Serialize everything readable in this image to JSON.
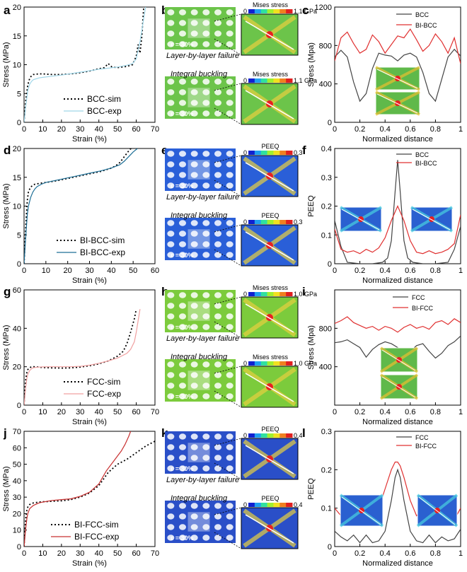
{
  "panel_labels": [
    "a",
    "b",
    "c",
    "d",
    "e",
    "f",
    "g",
    "h",
    "i",
    "j",
    "k",
    "l"
  ],
  "sim_panels": [
    {
      "top_title": "Mises stress",
      "top_max": "1.1 GPa",
      "top_min": "0",
      "top_caption": "Layer-by-layer failure",
      "bottom_title": "Mises stress",
      "bottom_max": "1.1 GPa",
      "bottom_min": "0",
      "bottom_caption": "Integral buckling",
      "strain_label": "ε = 30%",
      "lattice_color": "#6cc44a"
    },
    {
      "top_title": "PEEQ",
      "top_max": "0.3",
      "top_min": "0",
      "top_caption": "Layer-by-layer failure",
      "bottom_title": "PEEQ",
      "bottom_max": "0.3",
      "bottom_min": "0",
      "bottom_caption": "Integral buckling",
      "strain_label": "ε = 30%",
      "lattice_color": "#2a5fd8"
    },
    {
      "top_title": "Mises stress",
      "top_max": "1.0 GPa",
      "top_min": "0",
      "top_caption": "Layer-by-layer failure",
      "bottom_title": "Mises stress",
      "bottom_max": "1.0 GPa",
      "bottom_min": "0",
      "bottom_caption": "Integral buckling",
      "strain_label": "ε = 30%",
      "lattice_color": "#7ccb3c"
    },
    {
      "top_title": "PEEQ",
      "top_max": "0.4",
      "top_min": "0",
      "top_caption": "Layer-by-layer failure",
      "bottom_title": "PEEQ",
      "bottom_max": "0.4",
      "bottom_min": "0",
      "bottom_caption": "Integral buckling",
      "strain_label": "ε = 30%",
      "lattice_color": "#2a4fc8"
    }
  ],
  "chart_data": [
    {
      "id": "a",
      "type": "line",
      "xlabel": "Strain (%)",
      "ylabel": "Stress (MPa)",
      "xlim": [
        0,
        70
      ],
      "ylim": [
        0,
        20
      ],
      "xticks": [
        0,
        10,
        20,
        30,
        40,
        50,
        60,
        70
      ],
      "yticks": [
        0,
        5,
        10,
        15,
        20
      ],
      "legend": "bottom-right",
      "series": [
        {
          "name": "BCC-sim",
          "style": "dotted",
          "color": "#000000",
          "x": [
            0,
            1,
            2,
            3,
            4,
            5,
            8,
            10,
            15,
            20,
            25,
            30,
            35,
            40,
            43,
            45,
            47,
            50,
            55,
            58,
            60,
            61,
            62,
            63,
            64
          ],
          "y": [
            0,
            4,
            6.5,
            7.6,
            8.1,
            8.3,
            8.4,
            8.4,
            8.3,
            8.3,
            8.4,
            8.6,
            8.9,
            9.3,
            9.5,
            10.2,
            9.6,
            9.5,
            9.7,
            10,
            11.5,
            13.5,
            12,
            15,
            20
          ]
        },
        {
          "name": "BCC-exp",
          "style": "solid",
          "color": "#9fd6e8",
          "x": [
            0,
            1,
            2,
            3,
            4,
            5,
            8,
            10,
            15,
            20,
            30,
            40,
            50,
            55,
            58,
            60,
            61,
            62,
            63,
            64,
            65
          ],
          "y": [
            0,
            3,
            5.5,
            6.6,
            7.1,
            7.4,
            7.7,
            7.8,
            8.0,
            8.2,
            8.7,
            9.2,
            9.6,
            9.9,
            10.2,
            11,
            12.5,
            14,
            16,
            18,
            20
          ]
        }
      ]
    },
    {
      "id": "c",
      "type": "line",
      "xlabel": "Normalized distance",
      "ylabel": "Stress (Mpa)",
      "xlim": [
        0,
        1
      ],
      "ylim": [
        0,
        1200
      ],
      "xticks": [
        0,
        0.2,
        0.4,
        0.6,
        0.8,
        1.0
      ],
      "yticks": [
        0,
        400,
        800,
        1200
      ],
      "legend": "top-right",
      "series": [
        {
          "name": "BCC",
          "style": "solid",
          "color": "#444444",
          "x": [
            0,
            0.05,
            0.1,
            0.15,
            0.2,
            0.25,
            0.3,
            0.35,
            0.4,
            0.45,
            0.5,
            0.55,
            0.6,
            0.65,
            0.7,
            0.75,
            0.8,
            0.85,
            0.9,
            0.95,
            1.0
          ],
          "y": [
            680,
            750,
            680,
            420,
            220,
            300,
            560,
            720,
            700,
            690,
            640,
            700,
            720,
            680,
            520,
            300,
            220,
            450,
            680,
            760,
            690
          ]
        },
        {
          "name": "BI-BCC",
          "style": "solid",
          "color": "#e03030",
          "x": [
            0,
            0.05,
            0.1,
            0.15,
            0.2,
            0.25,
            0.3,
            0.35,
            0.4,
            0.45,
            0.5,
            0.55,
            0.6,
            0.65,
            0.7,
            0.75,
            0.8,
            0.85,
            0.9,
            0.95,
            1.0
          ],
          "y": [
            640,
            880,
            940,
            820,
            720,
            760,
            910,
            840,
            720,
            810,
            900,
            880,
            970,
            860,
            740,
            800,
            920,
            840,
            720,
            880,
            610
          ]
        }
      ]
    },
    {
      "id": "d",
      "type": "line",
      "xlabel": "Strain (%)",
      "ylabel": "Stress (MPa)",
      "xlim": [
        0,
        60
      ],
      "ylim": [
        0,
        20
      ],
      "xticks": [
        0,
        10,
        20,
        30,
        40,
        50,
        60
      ],
      "yticks": [
        0,
        5,
        10,
        15,
        20
      ],
      "legend": "bottom-right",
      "series": [
        {
          "name": "BI-BCC-sim",
          "style": "dotted",
          "color": "#000000",
          "x": [
            0,
            0.5,
            1,
            1.5,
            2,
            3,
            4,
            5,
            8,
            10,
            15,
            20,
            25,
            30,
            35,
            40,
            42,
            44,
            46,
            48,
            49
          ],
          "y": [
            0,
            4,
            8,
            11,
            12.5,
            13.3,
            13.6,
            13.8,
            14,
            14.1,
            14.4,
            14.8,
            15.2,
            15.6,
            16,
            16.6,
            17,
            17.6,
            18.6,
            19.6,
            20
          ]
        },
        {
          "name": "BI-BCC-exp",
          "style": "solid",
          "color": "#1e6f96",
          "x": [
            0,
            0.5,
            1,
            1.5,
            2,
            3,
            4,
            5,
            6,
            8,
            10,
            15,
            20,
            25,
            30,
            35,
            40,
            44,
            46,
            48,
            50,
            52
          ],
          "y": [
            0,
            3,
            6,
            8.5,
            10,
            11.5,
            12.4,
            13,
            13.4,
            13.8,
            14.1,
            14.5,
            14.9,
            15.3,
            15.7,
            16.1,
            16.6,
            17.2,
            17.8,
            18.6,
            19.4,
            20
          ]
        }
      ]
    },
    {
      "id": "f",
      "type": "line",
      "xlabel": "Normalized distance",
      "ylabel": "PEEQ",
      "xlim": [
        0,
        1
      ],
      "ylim": [
        0,
        0.4
      ],
      "xticks": [
        0,
        0.2,
        0.4,
        0.6,
        0.8,
        1.0
      ],
      "yticks": [
        0,
        0.1,
        0.2,
        0.3,
        0.4
      ],
      "legend": "top-right",
      "series": [
        {
          "name": "BCC",
          "style": "solid",
          "color": "#444444",
          "x": [
            0,
            0.05,
            0.1,
            0.2,
            0.3,
            0.38,
            0.42,
            0.45,
            0.48,
            0.5,
            0.52,
            0.55,
            0.58,
            0.62,
            0.7,
            0.8,
            0.9,
            0.95,
            1.0
          ],
          "y": [
            0.15,
            0.06,
            0.005,
            0,
            0,
            0.005,
            0.02,
            0.08,
            0.25,
            0.36,
            0.25,
            0.08,
            0.02,
            0.005,
            0,
            0,
            0.005,
            0.05,
            0.13
          ]
        },
        {
          "name": "BI-BCC",
          "style": "solid",
          "color": "#e03030",
          "x": [
            0,
            0.05,
            0.1,
            0.15,
            0.2,
            0.25,
            0.3,
            0.35,
            0.4,
            0.45,
            0.5,
            0.55,
            0.6,
            0.65,
            0.7,
            0.75,
            0.8,
            0.85,
            0.9,
            0.95,
            1.0
          ],
          "y": [
            0.12,
            0.05,
            0.04,
            0.045,
            0.035,
            0.05,
            0.04,
            0.055,
            0.09,
            0.15,
            0.2,
            0.15,
            0.08,
            0.04,
            0.035,
            0.045,
            0.035,
            0.04,
            0.05,
            0.07,
            0.17
          ]
        }
      ]
    },
    {
      "id": "g",
      "type": "line",
      "xlabel": "Strain (%)",
      "ylabel": "Stress (MPa)",
      "xlim": [
        0,
        70
      ],
      "ylim": [
        0,
        60
      ],
      "xticks": [
        0,
        10,
        20,
        30,
        40,
        50,
        60,
        70
      ],
      "yticks": [
        0,
        20,
        40,
        60
      ],
      "legend": "bottom-right",
      "series": [
        {
          "name": "FCC-sim",
          "style": "dotted",
          "color": "#000000",
          "x": [
            0,
            0.5,
            1,
            1.5,
            2,
            3,
            4,
            5,
            8,
            10,
            15,
            20,
            25,
            30,
            35,
            40,
            45,
            50,
            53,
            55,
            57,
            59,
            60
          ],
          "y": [
            0,
            8,
            14,
            17,
            18.5,
            19.5,
            20,
            20,
            19.8,
            19.6,
            19.4,
            19.3,
            19.4,
            19.8,
            20.5,
            21.5,
            23,
            25.5,
            28,
            32,
            38,
            45,
            50
          ]
        },
        {
          "name": "FCC-exp",
          "style": "solid",
          "color": "#f0a0a0",
          "x": [
            0,
            0.5,
            1,
            1.5,
            2,
            3,
            4,
            5,
            8,
            10,
            15,
            20,
            25,
            30,
            35,
            40,
            45,
            50,
            55,
            57,
            59,
            60,
            61,
            62
          ],
          "y": [
            0,
            5,
            10,
            14,
            16,
            18,
            19,
            19.5,
            19.8,
            19.9,
            20,
            20,
            20,
            20.2,
            20.8,
            21.8,
            23,
            24.5,
            27,
            29,
            33,
            38,
            44,
            50
          ]
        }
      ]
    },
    {
      "id": "i",
      "type": "line",
      "xlabel": "Normalized distance",
      "ylabel": "Stress (Mpa)",
      "xlim": [
        0,
        1
      ],
      "ylim": [
        0,
        1200
      ],
      "xticks": [
        0,
        0.2,
        0.4,
        0.6,
        0.8,
        1.0
      ],
      "yticks": [
        400,
        800
      ],
      "legend": "top-right",
      "series": [
        {
          "name": "FCC",
          "style": "solid",
          "color": "#444444",
          "x": [
            0,
            0.05,
            0.1,
            0.15,
            0.2,
            0.25,
            0.3,
            0.35,
            0.4,
            0.45,
            0.5,
            0.55,
            0.6,
            0.65,
            0.7,
            0.75,
            0.8,
            0.85,
            0.9,
            0.95,
            1.0
          ],
          "y": [
            650,
            660,
            680,
            640,
            600,
            500,
            580,
            630,
            660,
            640,
            600,
            540,
            560,
            620,
            640,
            560,
            490,
            540,
            620,
            660,
            720
          ]
        },
        {
          "name": "BI-FCC",
          "style": "solid",
          "color": "#e03030",
          "x": [
            0,
            0.05,
            0.1,
            0.15,
            0.2,
            0.25,
            0.3,
            0.35,
            0.4,
            0.45,
            0.5,
            0.55,
            0.6,
            0.65,
            0.7,
            0.75,
            0.8,
            0.85,
            0.9,
            0.95,
            1.0
          ],
          "y": [
            850,
            880,
            920,
            860,
            830,
            800,
            820,
            780,
            820,
            800,
            760,
            810,
            840,
            800,
            820,
            790,
            860,
            880,
            840,
            900,
            860
          ]
        }
      ]
    },
    {
      "id": "j",
      "type": "line",
      "xlabel": "Strain (%)",
      "ylabel": "Stress (MPa)",
      "xlim": [
        0,
        70
      ],
      "ylim": [
        0,
        70
      ],
      "xticks": [
        0,
        10,
        20,
        30,
        40,
        50,
        60,
        70
      ],
      "yticks": [
        0,
        10,
        20,
        30,
        40,
        50,
        60,
        70
      ],
      "legend": "bottom-right",
      "series": [
        {
          "name": "BI-FCC-sim",
          "style": "dotted",
          "color": "#000000",
          "x": [
            0,
            0.5,
            1,
            1.5,
            2,
            3,
            5,
            8,
            10,
            15,
            20,
            25,
            30,
            35,
            40,
            45,
            50,
            55,
            60,
            65,
            70
          ],
          "y": [
            0,
            10,
            18,
            22,
            24,
            25.5,
            26.5,
            27,
            27.2,
            27.5,
            27.8,
            28.5,
            30,
            32.5,
            37,
            45,
            50,
            53,
            57,
            61,
            64
          ]
        },
        {
          "name": "BI-FCC-exp",
          "style": "solid",
          "color": "#c83030",
          "x": [
            0,
            0.5,
            1,
            1.5,
            2,
            3,
            5,
            8,
            10,
            15,
            20,
            25,
            30,
            35,
            40,
            42,
            44,
            46,
            48,
            50,
            52,
            54,
            56,
            57
          ],
          "y": [
            0,
            6,
            12,
            17,
            20,
            23,
            25,
            26.5,
            27,
            28,
            28.5,
            29,
            30.5,
            33,
            38,
            42,
            46,
            49,
            52,
            55,
            58,
            62,
            67,
            70
          ]
        }
      ]
    },
    {
      "id": "l",
      "type": "line",
      "xlabel": "Normalized distance",
      "ylabel": "PEEQ",
      "xlim": [
        0,
        1
      ],
      "ylim": [
        0,
        0.3
      ],
      "xticks": [
        0,
        0.2,
        0.4,
        0.6,
        0.8,
        1.0
      ],
      "yticks": [
        0,
        0.1,
        0.2,
        0.3
      ],
      "legend": "top-right",
      "series": [
        {
          "name": "FCC",
          "style": "solid",
          "color": "#444444",
          "x": [
            0,
            0.05,
            0.1,
            0.15,
            0.2,
            0.25,
            0.3,
            0.35,
            0.4,
            0.45,
            0.48,
            0.5,
            0.52,
            0.55,
            0.6,
            0.65,
            0.7,
            0.75,
            0.8,
            0.85,
            0.9,
            0.95,
            1.0
          ],
          "y": [
            0.04,
            0.025,
            0.015,
            0.03,
            0.01,
            0.03,
            0.01,
            0.015,
            0.04,
            0.12,
            0.18,
            0.2,
            0.18,
            0.12,
            0.04,
            0.015,
            0.01,
            0.03,
            0.01,
            0.025,
            0.015,
            0.02,
            0.045
          ]
        },
        {
          "name": "BI-FCC",
          "style": "solid",
          "color": "#e03030",
          "x": [
            0,
            0.05,
            0.1,
            0.15,
            0.2,
            0.25,
            0.3,
            0.35,
            0.4,
            0.45,
            0.48,
            0.5,
            0.52,
            0.55,
            0.6,
            0.65,
            0.7,
            0.75,
            0.8,
            0.85,
            0.9,
            0.95,
            1.0
          ],
          "y": [
            0.1,
            0.08,
            0.08,
            0.11,
            0.08,
            0.1,
            0.06,
            0.1,
            0.15,
            0.2,
            0.22,
            0.22,
            0.21,
            0.18,
            0.12,
            0.08,
            0.1,
            0.06,
            0.08,
            0.11,
            0.08,
            0.07,
            0.1
          ]
        }
      ]
    }
  ]
}
